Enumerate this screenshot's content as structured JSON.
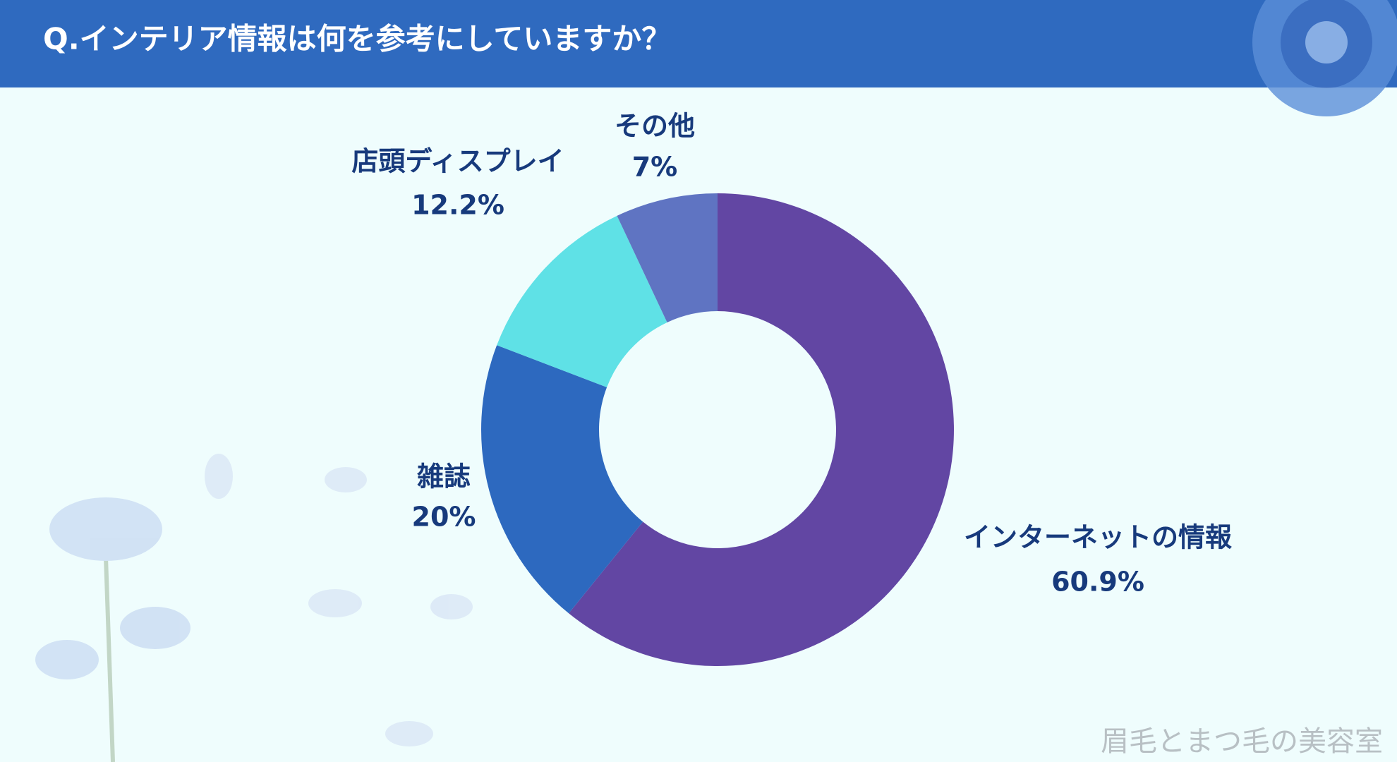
{
  "chart_data": {
    "type": "donut",
    "title": "Q.インテリア情報は何を参考にしていますか？",
    "categories": [
      "インターネットの情報",
      "雑誌",
      "店頭ディスプレイ",
      "その他"
    ],
    "values": [
      60.9,
      20,
      12.2,
      7
    ],
    "value_labels": [
      "60.9%",
      "20%",
      "12.2%",
      "7%"
    ],
    "colors": [
      "#6246a3",
      "#2d69bf",
      "#5fe1e6",
      "#5f74c2"
    ],
    "watermark": "眉毛とまつ毛の美容室"
  }
}
